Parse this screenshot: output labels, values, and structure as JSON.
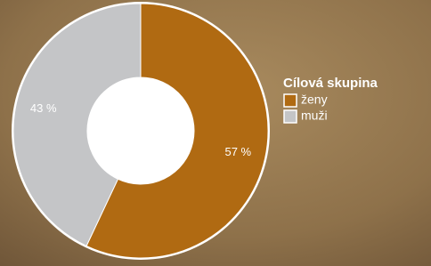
{
  "chart_data": {
    "type": "donut",
    "legend_title": "Cílová skupina",
    "categories": [
      "ženy",
      "muži"
    ],
    "values": [
      57,
      43
    ],
    "value_labels": [
      "57 %",
      "43 %"
    ],
    "colors": [
      "#b06a12",
      "#c4c5c7"
    ]
  }
}
